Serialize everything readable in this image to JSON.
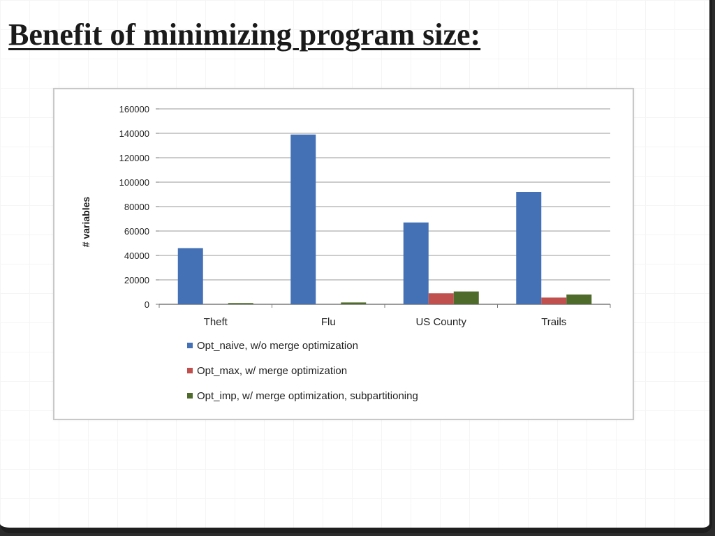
{
  "slide": {
    "title": "Benefit of minimizing program size:"
  },
  "chart_data": {
    "type": "bar",
    "title": "",
    "xlabel": "",
    "ylabel": "# variables",
    "categories": [
      "Theft",
      "Flu",
      "US County",
      "Trails"
    ],
    "series": [
      {
        "name": "Opt_naive, w/o merge optimization",
        "color": "#4471b5",
        "values": [
          46000,
          139000,
          67000,
          92000
        ]
      },
      {
        "name": "Opt_max, w/ merge optimization",
        "color": "#c0504d",
        "values": [
          0,
          0,
          9000,
          5500
        ]
      },
      {
        "name": "Opt_imp, w/ merge optimization, subpartitioning",
        "color": "#4f6b2c",
        "values": [
          1000,
          1500,
          10500,
          8000
        ]
      }
    ],
    "ylim": [
      0,
      160000
    ],
    "yticks": [
      "0",
      "20000",
      "40000",
      "60000",
      "80000",
      "100000",
      "120000",
      "140000",
      "160000"
    ],
    "grid": true,
    "legend": "bottom"
  }
}
